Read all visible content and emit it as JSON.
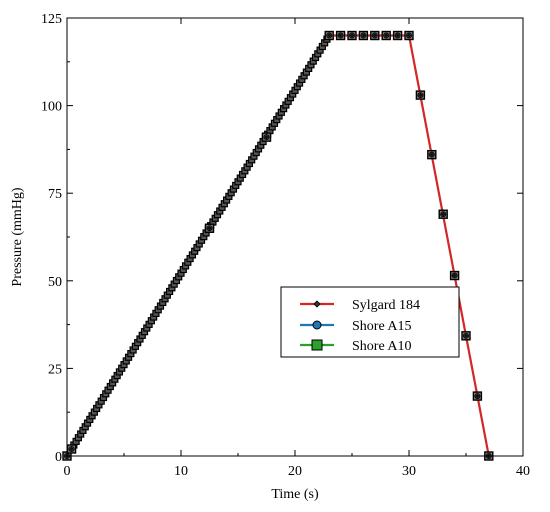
{
  "chart_data": {
    "type": "line",
    "title": "",
    "xlabel": "Time (s)",
    "ylabel": "Pressure (mmHg)",
    "xlim": [
      0,
      40
    ],
    "ylim": [
      0,
      125
    ],
    "xticks": [
      0,
      10,
      20,
      30,
      40
    ],
    "yticks": [
      0,
      25,
      50,
      75,
      100,
      125
    ],
    "grid": false,
    "legend_position": "right-middle",
    "series": [
      {
        "name": "Sylgard 184",
        "color": "#d62728",
        "marker": "diamond",
        "x": [
          0,
          23,
          30,
          37
        ],
        "y": [
          0,
          120,
          120,
          0
        ]
      },
      {
        "name": "Shore A15",
        "color": "#1f77b4",
        "marker": "circle",
        "x": [
          0,
          23,
          30,
          37
        ],
        "y": [
          0,
          120,
          120,
          0
        ]
      },
      {
        "name": "Shore A10",
        "color": "#2ca02c",
        "marker": "square",
        "x": [
          0,
          23,
          30,
          37
        ],
        "y": [
          0,
          120,
          120,
          0
        ]
      }
    ],
    "markers_on_curve": {
      "x": [
        0,
        0.4,
        12.5,
        17.5,
        23,
        24,
        25,
        26,
        27,
        28,
        29,
        30,
        31,
        32,
        33,
        34,
        35,
        36,
        37
      ],
      "y": [
        0,
        2,
        65,
        91,
        120,
        120,
        120,
        120,
        120,
        120,
        120,
        120,
        103,
        86,
        69,
        51.5,
        34.3,
        17.1,
        0
      ]
    }
  }
}
